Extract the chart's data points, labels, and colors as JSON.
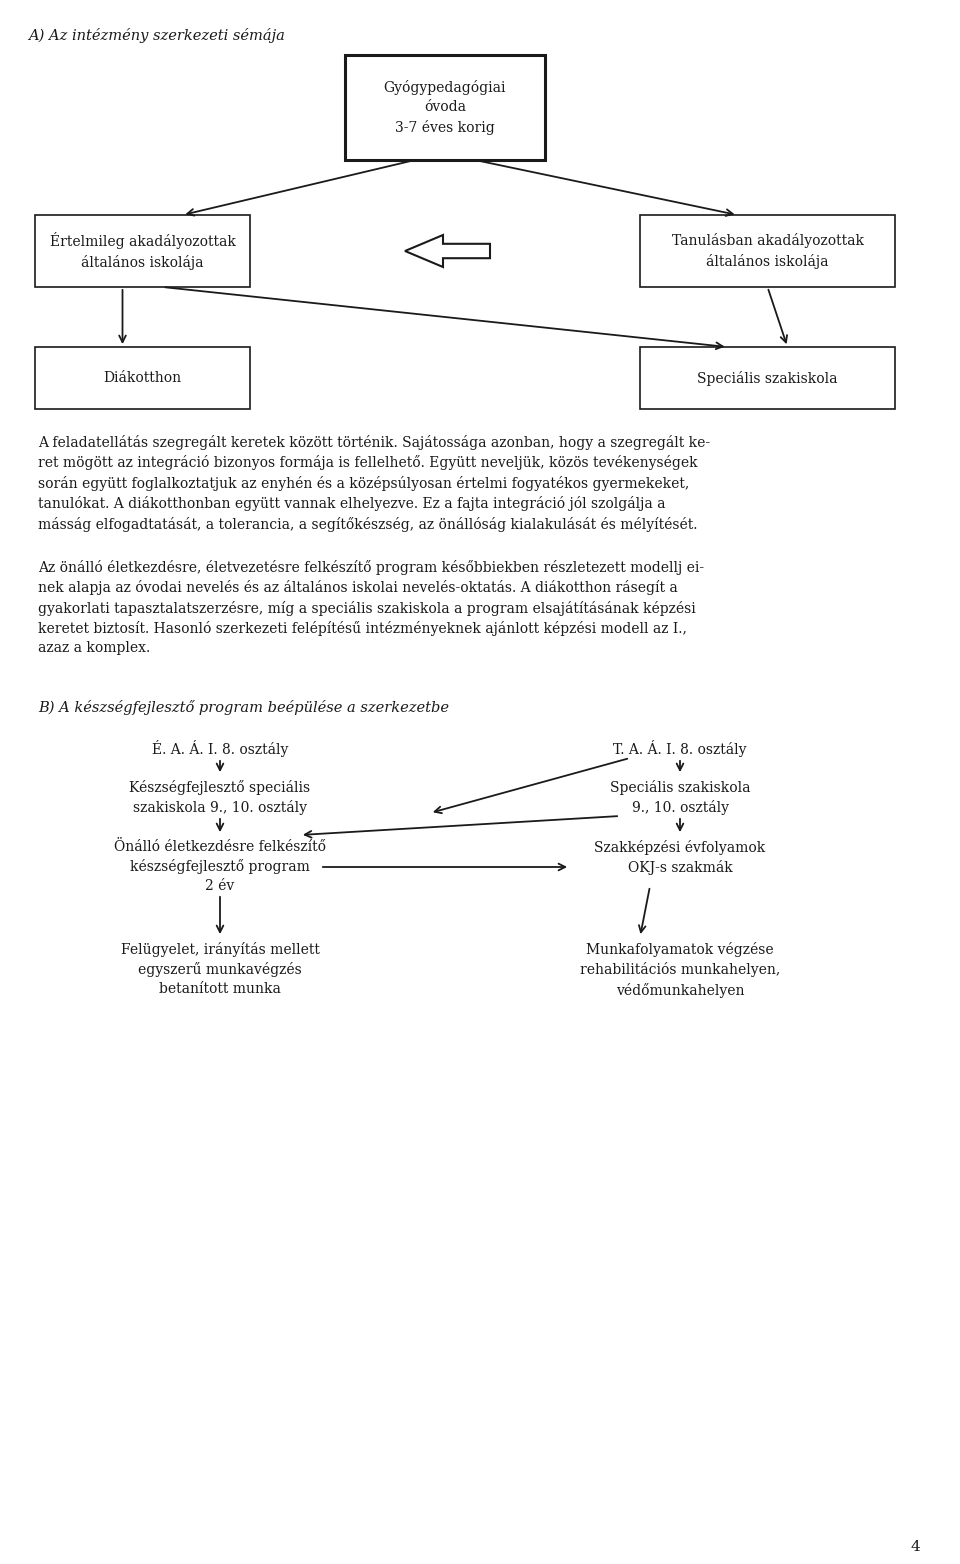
{
  "title_A": "A) Az intézmény szerkezeti sémája",
  "title_B": "B) A készségfejlesztő program beépülése a szerkezetbe",
  "page_number": "4",
  "background": "#ffffff",
  "text_color": "#1a1a1a",
  "box_border_color": "#1a1a1a",
  "font_size_title": 10.5,
  "font_size_body": 10.0,
  "font_size_box": 10.0,
  "font_size_label": 10.0
}
